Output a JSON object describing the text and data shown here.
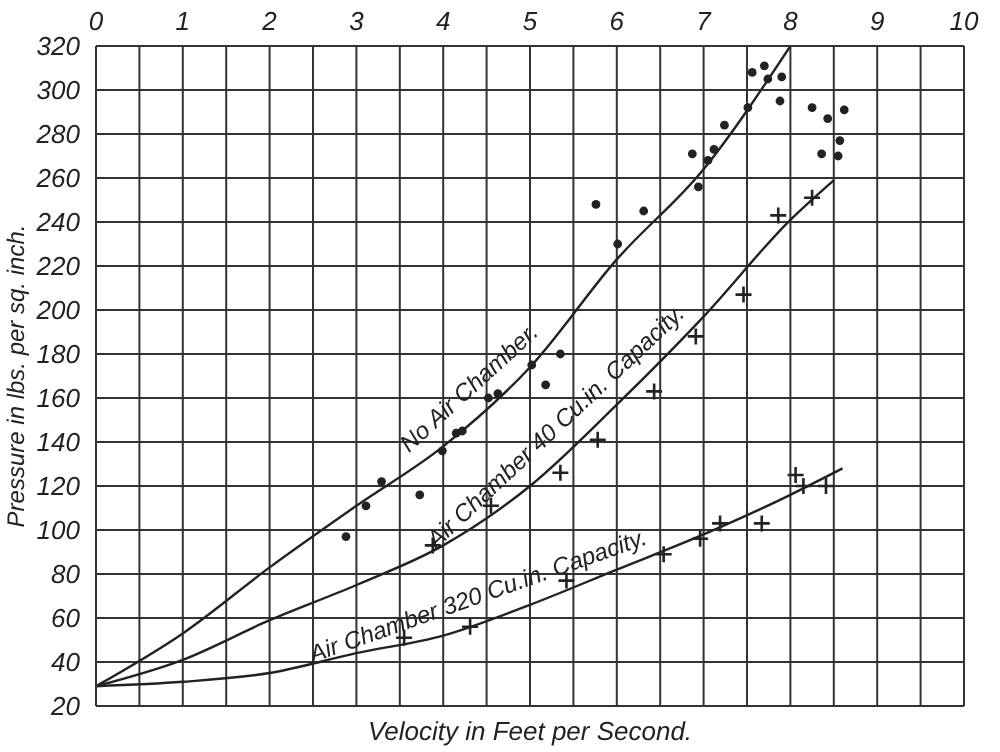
{
  "chart_data": {
    "type": "line",
    "xlabel": "Velocity in Feet per Second.",
    "ylabel": "Pressure in lbs. per sq. inch.",
    "xlim": [
      0,
      10
    ],
    "xticks": [
      0,
      {
        "value": 0.5,
        "label": null
      },
      1,
      {
        "value": 1.5,
        "label": null
      },
      2,
      {
        "value": 2.5,
        "label": null
      },
      3,
      {
        "value": 3.5,
        "label": null
      },
      4,
      {
        "value": 4.5,
        "label": null
      },
      5,
      {
        "value": 5.5,
        "label": null
      },
      6,
      {
        "value": 6.5,
        "label": null
      },
      7,
      {
        "value": 7.5,
        "label": null
      },
      8,
      {
        "value": 8.5,
        "label": null
      },
      9,
      {
        "value": 9.5,
        "label": null
      },
      10
    ],
    "ylim": [
      20,
      320
    ],
    "yticks": [
      20,
      40,
      60,
      80,
      100,
      120,
      140,
      160,
      180,
      200,
      220,
      240,
      260,
      280,
      300,
      320
    ],
    "grid": true,
    "series": [
      {
        "name": "No Air Chamber.",
        "color": "#222222",
        "marker": "none",
        "x": [
          0,
          1,
          2,
          3,
          4,
          5,
          6,
          7,
          8
        ],
        "values": [
          29,
          53,
          83,
          111,
          138,
          174,
          223,
          264,
          320
        ]
      },
      {
        "name": "Air Chamber 40 Cu.in. Capacity.",
        "color": "#222222",
        "marker": "none",
        "x": [
          0,
          1,
          2,
          3,
          4,
          5,
          6,
          7,
          8,
          8.5
        ],
        "values": [
          29,
          41,
          59,
          75,
          93,
          120,
          157,
          197,
          241,
          259
        ]
      },
      {
        "name": "Air Chamber 320 Cu.in. Capacity.",
        "color": "#222222",
        "marker": "none",
        "x": [
          0,
          1,
          2,
          3,
          4,
          5,
          6,
          7,
          8,
          8.6
        ],
        "values": [
          29,
          31,
          35,
          44,
          52,
          66,
          82,
          98,
          116,
          128
        ]
      },
      {
        "type": "scatter",
        "color": "#222222",
        "marker": "circle",
        "x": [
          2.88,
          3.11,
          3.29,
          3.73,
          3.99,
          4.15,
          4.22,
          4.52,
          4.63,
          5.02,
          5.18,
          5.35,
          5.76,
          6.01,
          6.31,
          6.87,
          6.94,
          7.05,
          7.12,
          7.24,
          7.51,
          7.56,
          7.7,
          7.74,
          7.9,
          7.88,
          8.25,
          8.36,
          8.43,
          8.55,
          8.57,
          8.62
        ],
        "values": [
          97,
          111,
          122,
          116,
          136,
          144,
          145,
          160,
          162,
          175,
          166,
          180,
          248,
          230,
          245,
          271,
          256,
          268,
          273,
          284,
          292,
          308,
          311,
          305,
          306,
          295,
          292,
          271,
          287,
          270,
          277,
          291
        ]
      },
      {
        "type": "scatter",
        "color": "#222222",
        "marker": "cross",
        "x": [
          3.88,
          4.55,
          5.35,
          5.78,
          6.43,
          6.91,
          7.46,
          7.86,
          8.25
        ],
        "values": [
          93,
          111,
          126,
          141,
          163,
          188,
          207,
          243,
          251
        ]
      },
      {
        "type": "scatter",
        "color": "#222222",
        "marker": "cross",
        "x": [
          3.55,
          4.31,
          5.42,
          6.54,
          6.96,
          7.19,
          7.67,
          8.06,
          8.15,
          8.41
        ],
        "values": [
          51,
          56,
          77,
          89,
          96,
          103,
          103,
          125,
          120,
          120
        ]
      }
    ]
  }
}
